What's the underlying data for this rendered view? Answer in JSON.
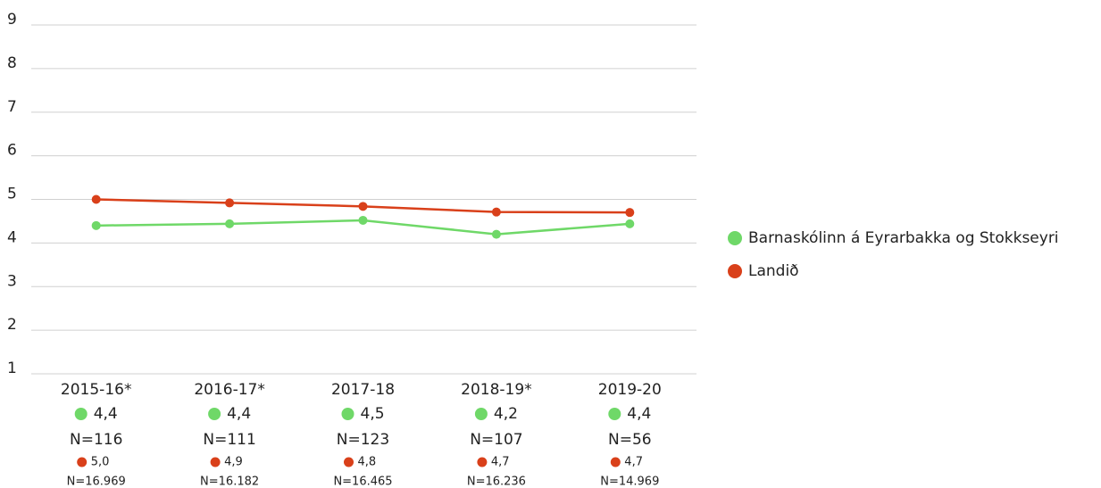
{
  "chart_data": {
    "type": "line",
    "categories": [
      "2015-16*",
      "2016-17*",
      "2017-18",
      "2018-19*",
      "2019-20"
    ],
    "series": [
      {
        "name": "Barnaskólinn á Eyrarbakka og Stokkseyri",
        "color": "#6fd868",
        "values": [
          4.4,
          4.44,
          4.52,
          4.2,
          4.44
        ],
        "value_labels": [
          "4,4",
          "4,4",
          "4,5",
          "4,2",
          "4,4"
        ],
        "count_labels": [
          "N=116",
          "N=111",
          "N=123",
          "N=107",
          "N=56"
        ]
      },
      {
        "name": "Landið",
        "color": "#d9401a",
        "values": [
          5.0,
          4.92,
          4.84,
          4.71,
          4.7
        ],
        "value_labels": [
          "5,0",
          "4,9",
          "4,8",
          "4,7",
          "4,7"
        ],
        "count_labels": [
          "N=16.969",
          "N=16.182",
          "N=16.465",
          "N=16.236",
          "N=14.969"
        ]
      }
    ],
    "ylim": [
      1,
      9
    ],
    "yticks": [
      1,
      2,
      3,
      4,
      5,
      6,
      7,
      8,
      9
    ],
    "grid": true,
    "legend": "right"
  }
}
